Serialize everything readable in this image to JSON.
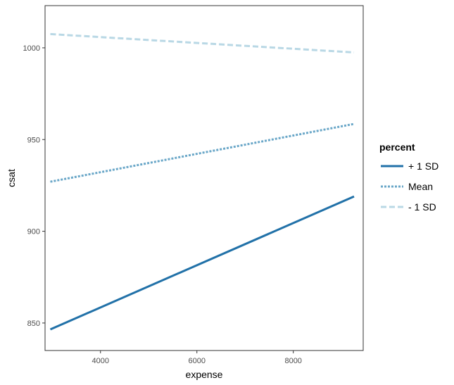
{
  "chart_data": {
    "type": "line",
    "xlabel": "expense",
    "ylabel": "csat",
    "xlim": [
      2850,
      9450
    ],
    "ylim": [
      835,
      1023
    ],
    "x_ticks": [
      4000,
      6000,
      8000
    ],
    "y_ticks": [
      850,
      900,
      950,
      1000
    ],
    "grid": false,
    "legend": {
      "title": "percent",
      "position": "right"
    },
    "series": [
      {
        "name": "+ 1 SD",
        "color": "#2171a8",
        "dash": "solid",
        "x": [
          2960,
          9260
        ],
        "y": [
          846.5,
          919
        ]
      },
      {
        "name": "Mean",
        "color": "#6aa7c8",
        "dash": "dotted",
        "x": [
          2960,
          9260
        ],
        "y": [
          927,
          958.5
        ]
      },
      {
        "name": "- 1 SD",
        "color": "#b9d8e5",
        "dash": "dashed",
        "x": [
          2960,
          9260
        ],
        "y": [
          1007.5,
          997.5
        ]
      }
    ]
  }
}
